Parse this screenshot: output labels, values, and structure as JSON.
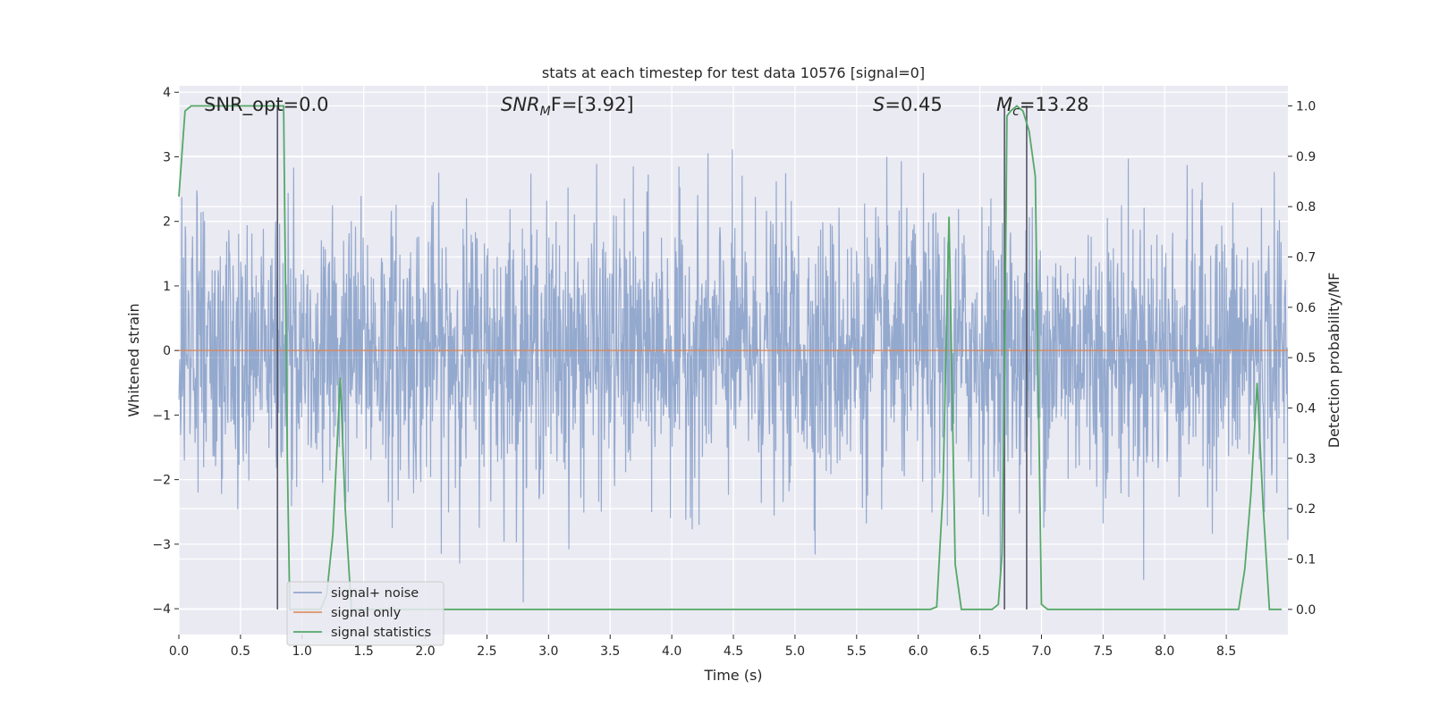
{
  "chart_data": {
    "type": "line",
    "title": "stats at each timestep for test data 10576 [signal=0]",
    "xlabel": "Time (s)",
    "ylabel": "Whitened strain",
    "ylabel_right": "Detection probability/MF",
    "xlim": [
      0.0,
      9.0
    ],
    "ylim": [
      -4.4,
      4.1
    ],
    "ylim_right": [
      -0.05,
      1.04
    ],
    "x_ticks": [
      "0.0",
      "0.5",
      "1.0",
      "1.5",
      "2.0",
      "2.5",
      "3.0",
      "3.5",
      "4.0",
      "4.5",
      "5.0",
      "5.5",
      "6.0",
      "6.5",
      "7.0",
      "7.5",
      "8.0",
      "8.5"
    ],
    "y_ticks": [
      "4",
      "3",
      "2",
      "1",
      "0",
      "−1",
      "−2",
      "−3",
      "−4"
    ],
    "y_right_ticks": [
      "1.0",
      "0.9",
      "0.8",
      "0.7",
      "0.6",
      "0.5",
      "0.4",
      "0.3",
      "0.2",
      "0.1",
      "0.0"
    ],
    "grid": true,
    "annotations": {
      "snr_opt": "SNR_opt=0.0",
      "snr_mf_main": "SNR",
      "snr_mf_sub": "M",
      "snr_mf_rest": "F=[3.92]",
      "s_main": "S",
      "s_rest": "=0.45",
      "mc_main": "M",
      "mc_sub": "c",
      "mc_rest": "=13.28"
    },
    "series": [
      {
        "name": "signal+ noise",
        "color": "#4c72b0",
        "description_of_values": "whitened noise, roughly Gaussian, spanning about -3.5 to 3.7"
      },
      {
        "name": "signal only",
        "color": "#dd8452",
        "x": [
          0.0,
          9.0
        ],
        "y": [
          0.0,
          0.0
        ]
      },
      {
        "name": "signal statistics",
        "color": "#55a868",
        "axis": "right",
        "x": [
          0.0,
          0.05,
          0.1,
          0.15,
          0.2,
          0.3,
          0.4,
          0.5,
          0.6,
          0.7,
          0.75,
          0.8,
          0.85,
          0.88,
          0.9,
          1.0,
          1.1,
          1.15,
          1.2,
          1.25,
          1.31,
          1.35,
          1.4,
          1.5,
          2.0,
          3.0,
          4.0,
          5.0,
          5.5,
          6.0,
          6.1,
          6.15,
          6.2,
          6.25,
          6.3,
          6.35,
          6.4,
          6.5,
          6.6,
          6.65,
          6.68,
          6.7,
          6.72,
          6.75,
          6.8,
          6.85,
          6.9,
          6.95,
          7.0,
          7.05,
          7.1,
          7.5,
          8.0,
          8.5,
          8.6,
          8.65,
          8.7,
          8.75,
          8.8,
          8.85,
          8.95
        ],
        "y": [
          0.82,
          0.99,
          1.0,
          1.0,
          1.0,
          1.0,
          1.0,
          1.0,
          1.0,
          1.0,
          1.0,
          1.0,
          1.0,
          0.3,
          0.0,
          0.0,
          0.0,
          0.0,
          0.03,
          0.15,
          0.46,
          0.2,
          0.0,
          0.0,
          0.0,
          0.0,
          0.0,
          0.0,
          0.0,
          0.0,
          0.0,
          0.005,
          0.23,
          0.78,
          0.09,
          0.0,
          0.0,
          0.0,
          0.0,
          0.01,
          0.11,
          0.45,
          0.98,
          0.99,
          1.0,
          0.99,
          0.95,
          0.86,
          0.01,
          0.0,
          0.0,
          0.0,
          0.0,
          0.0,
          0.0,
          0.08,
          0.23,
          0.45,
          0.2,
          0.0,
          0.0
        ]
      }
    ],
    "vlines": [
      0.8,
      6.7,
      6.88
    ],
    "legend_position": "lower-left"
  }
}
